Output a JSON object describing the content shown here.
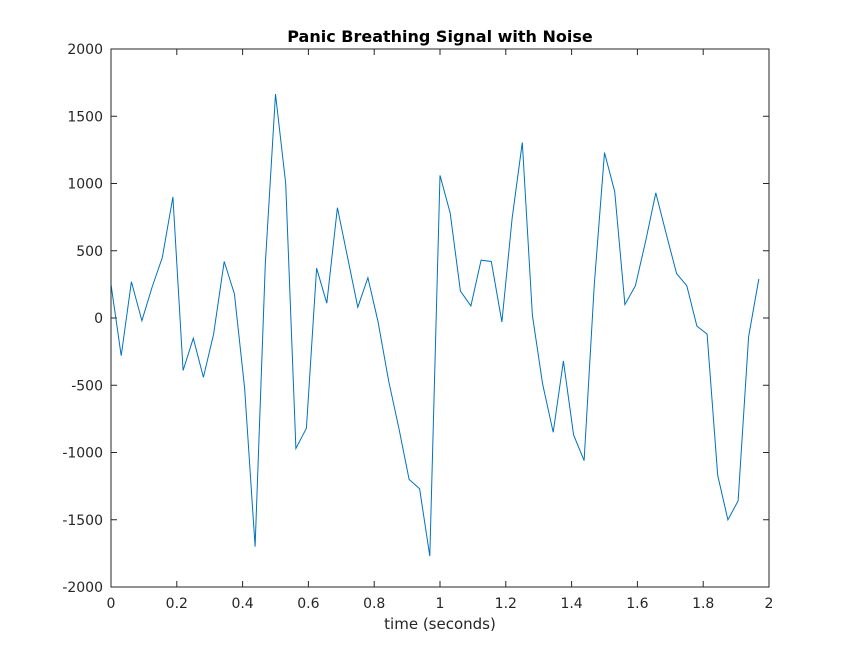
{
  "chart_data": {
    "type": "line",
    "title": "Panic Breathing Signal with Noise",
    "xlabel": "time (seconds)",
    "ylabel": "",
    "xlim": [
      0,
      2
    ],
    "ylim": [
      -2000,
      2000
    ],
    "xticks": [
      "0",
      "0.2",
      "0.4",
      "0.6",
      "0.8",
      "1",
      "1.2",
      "1.4",
      "1.6",
      "1.8",
      "2"
    ],
    "yticks": [
      "2000",
      "1500",
      "1000",
      "500",
      "0",
      "-500",
      "-1000",
      "-1500",
      "-2000"
    ],
    "grid": false,
    "line_color": "#0072BD",
    "series": [
      {
        "x": [
          0,
          0.031,
          0.062,
          0.094,
          0.125,
          0.156,
          0.188,
          0.219,
          0.25,
          0.281,
          0.312,
          0.344,
          0.375,
          0.406,
          0.438,
          0.469,
          0.5,
          0.531,
          0.562,
          0.594,
          0.625,
          0.656,
          0.688,
          0.719,
          0.75,
          0.781,
          0.812,
          0.844,
          0.875,
          0.906,
          0.938,
          0.969,
          1.0,
          1.031,
          1.062,
          1.094,
          1.125,
          1.156,
          1.188,
          1.219,
          1.25,
          1.281,
          1.312,
          1.344,
          1.375,
          1.406,
          1.438,
          1.469,
          1.5,
          1.531,
          1.562,
          1.594,
          1.625,
          1.656,
          1.688,
          1.719,
          1.75,
          1.781,
          1.812,
          1.844,
          1.875,
          1.906,
          1.938,
          1.969
        ],
        "y": [
          250,
          -280,
          270,
          -20,
          230,
          450,
          900,
          -390,
          -150,
          -440,
          -120,
          420,
          180,
          -520,
          -1700,
          400,
          1665,
          1000,
          -970,
          -820,
          370,
          110,
          820,
          450,
          80,
          300,
          -30,
          -470,
          -820,
          -1200,
          -1270,
          -1770,
          1060,
          780,
          200,
          90,
          430,
          420,
          -30,
          740,
          1305,
          20,
          -490,
          -850,
          -320,
          -870,
          -1060,
          250,
          1230,
          940,
          100,
          240,
          570,
          930,
          620,
          330,
          240,
          -60,
          -120,
          -1170,
          -1500,
          -1360,
          -140,
          290
        ]
      }
    ]
  }
}
